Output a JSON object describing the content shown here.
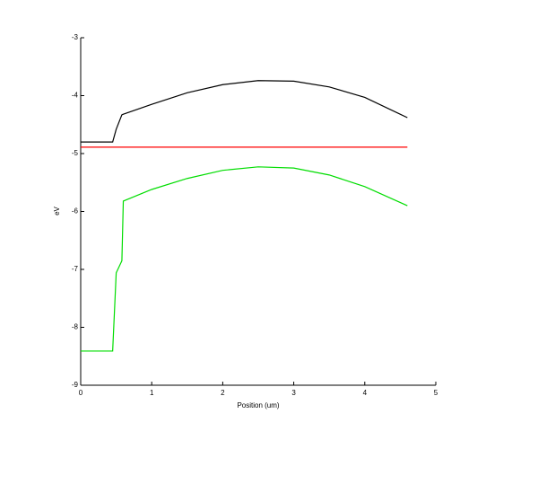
{
  "chart_data": {
    "type": "line",
    "x_label": "Position (um)",
    "y_label": "eV",
    "x": [
      0,
      0.45,
      0.5,
      0.58,
      0.6,
      1,
      1.5,
      2,
      2.5,
      3,
      3.5,
      4,
      4.6
    ],
    "series": [
      {
        "color": "#000000",
        "values": [
          -4.8,
          -4.8,
          -4.58,
          -4.33,
          -4.32,
          -4.15,
          -3.95,
          -3.81,
          -3.74,
          -3.75,
          -3.85,
          -4.03,
          -4.38
        ]
      },
      {
        "color": "#ff0000",
        "values": [
          -4.89,
          -4.89,
          -4.89,
          -4.89,
          -4.89,
          -4.89,
          -4.89,
          -4.89,
          -4.89,
          -4.89,
          -4.89,
          -4.89,
          -4.89
        ]
      },
      {
        "color": "#00dd00",
        "values": [
          -8.41,
          -8.41,
          -7.06,
          -6.85,
          -5.82,
          -5.62,
          -5.43,
          -5.29,
          -5.23,
          -5.25,
          -5.37,
          -5.57,
          -5.9
        ]
      }
    ],
    "xlim": [
      0,
      5
    ],
    "xticks": [
      0,
      1,
      2,
      3,
      4,
      5
    ],
    "ylim": [
      -9,
      -3
    ],
    "yticks": [
      -9,
      -8,
      -7,
      -6,
      -5,
      -4,
      -3
    ]
  }
}
